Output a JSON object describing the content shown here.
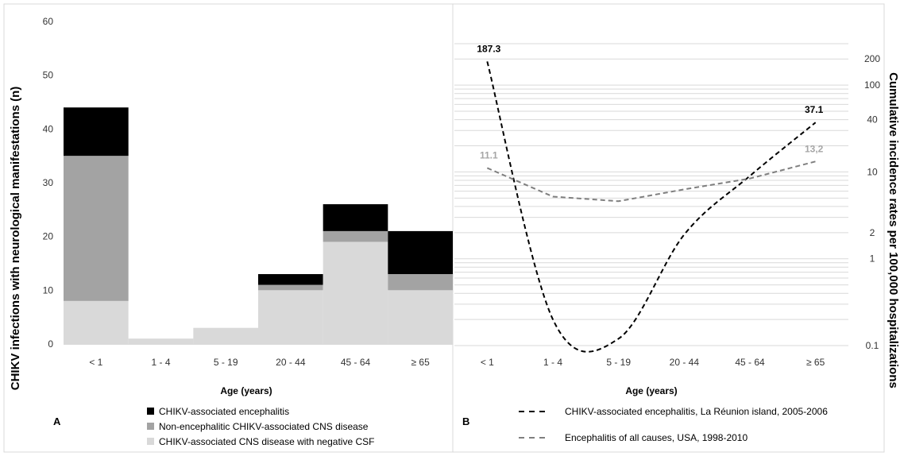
{
  "colors": {
    "encephalitis": "#000000",
    "non_encephalitic": "#a3a3a3",
    "negative_csf": "#d9d9d9",
    "reunion_line": "#000000",
    "usa_line": "#7f7f7f",
    "usa_label": "#a6a6a6",
    "grid": "#d9d9d9"
  },
  "chart_data": [
    {
      "panel": "A",
      "type": "bar",
      "stacked": true,
      "ylabel": "CHIKV infections with neurological manifestations  (n)",
      "xlabel": "Age (years)",
      "ylim": [
        0,
        60
      ],
      "yticks": [
        "0",
        "10",
        "20",
        "30",
        "40",
        "50",
        "60"
      ],
      "categories": [
        "< 1",
        "1 - 4",
        "5 - 19",
        "20 - 44",
        "45 - 64",
        "≥ 65"
      ],
      "grid": false,
      "legend_position": "bottom",
      "series": [
        {
          "name": "CHIKV-associated CNS disease with negative CSF",
          "values": [
            8,
            1,
            3,
            10,
            19,
            10
          ]
        },
        {
          "name": "Non-encephalitic CHIKV-associated CNS disease",
          "values": [
            27,
            0,
            0,
            1,
            2,
            3
          ]
        },
        {
          "name": "CHIKV-associated encephalitis",
          "values": [
            9,
            0,
            0,
            2,
            5,
            8
          ]
        }
      ]
    },
    {
      "panel": "B",
      "type": "line",
      "yscale": "log",
      "ylabel": "Cumulative incidence rates per 100,000 hospitalizations",
      "xlabel": "Age (years)",
      "ylim": [
        0.1,
        300
      ],
      "ytick_labels": [
        "0.1",
        "1",
        "2",
        "10",
        "40",
        "100",
        "200"
      ],
      "categories": [
        "< 1",
        "1 - 4",
        "5 - 19",
        "20 - 44",
        "45 - 64",
        "≥ 65"
      ],
      "grid": true,
      "legend_position": "bottom",
      "series": [
        {
          "name": "CHIKV-associated encephalitis, La Réunion island, 2005-2006",
          "style": "dashed-black",
          "values": [
            187.3,
            0.2,
            0.12,
            1.9,
            9,
            37.1
          ],
          "labels": [
            "187.3",
            "",
            "",
            "",
            "",
            "37.1"
          ]
        },
        {
          "name": "Encephalitis of all causes, USA, 1998-2010",
          "style": "dashed-grey",
          "values": [
            11.1,
            5.2,
            4.6,
            6.3,
            8.4,
            13.2
          ],
          "labels": [
            "11.1",
            "",
            "",
            "",
            "",
            "13,2"
          ]
        }
      ]
    }
  ]
}
